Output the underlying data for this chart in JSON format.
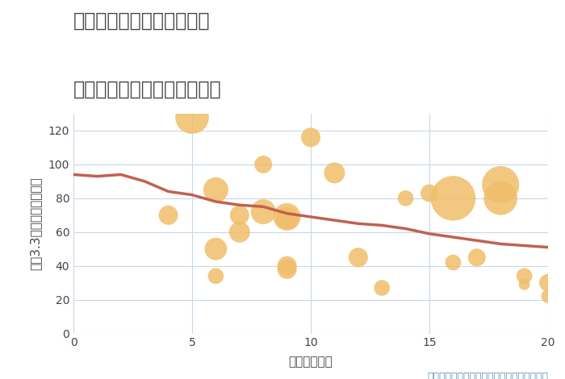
{
  "title_line1": "奈良県奈良市阿字万字町の",
  "title_line2": "駅距離別中古マンション価格",
  "xlabel": "駅距離（分）",
  "ylabel": "坪（3.3㎡）単価（万円）",
  "annotation": "円の大きさは、取引のあった物件面積を示す",
  "scatter_x": [
    4,
    5,
    6,
    6,
    6,
    7,
    7,
    8,
    8,
    9,
    9,
    9,
    9,
    10,
    11,
    12,
    13,
    14,
    15,
    16,
    16,
    17,
    18,
    18,
    19,
    19,
    20,
    20
  ],
  "scatter_y": [
    70,
    128,
    85,
    50,
    34,
    60,
    70,
    100,
    72,
    69,
    68,
    40,
    38,
    116,
    95,
    45,
    27,
    80,
    83,
    42,
    80,
    45,
    88,
    80,
    34,
    29,
    22,
    30
  ],
  "scatter_size": [
    300,
    900,
    500,
    400,
    200,
    350,
    300,
    250,
    500,
    600,
    400,
    300,
    300,
    300,
    350,
    300,
    200,
    200,
    250,
    200,
    1600,
    250,
    1100,
    900,
    200,
    100,
    150,
    250
  ],
  "trend_x": [
    0,
    1,
    2,
    3,
    4,
    5,
    6,
    7,
    8,
    9,
    10,
    11,
    12,
    13,
    14,
    15,
    16,
    17,
    18,
    19,
    20
  ],
  "trend_y": [
    94,
    93,
    94,
    90,
    84,
    82,
    78,
    76,
    75,
    71,
    69,
    67,
    65,
    64,
    62,
    59,
    57,
    55,
    53,
    52,
    51
  ],
  "scatter_color": "#F0BE6A",
  "scatter_alpha": 0.85,
  "trend_color": "#C1614F",
  "trend_linewidth": 2.5,
  "bg_color": "#FFFFFF",
  "grid_color": "#C8D8E8",
  "title_color": "#444444",
  "xlabel_color": "#444444",
  "ylabel_color": "#444444",
  "annotation_color": "#6090B0",
  "xlim": [
    0,
    20
  ],
  "ylim": [
    0,
    130
  ],
  "xticks": [
    0,
    5,
    10,
    15,
    20
  ],
  "yticks": [
    0,
    20,
    40,
    60,
    80,
    100,
    120
  ],
  "title_fontsize": 17,
  "label_fontsize": 11,
  "tick_fontsize": 10,
  "annotation_fontsize": 9
}
